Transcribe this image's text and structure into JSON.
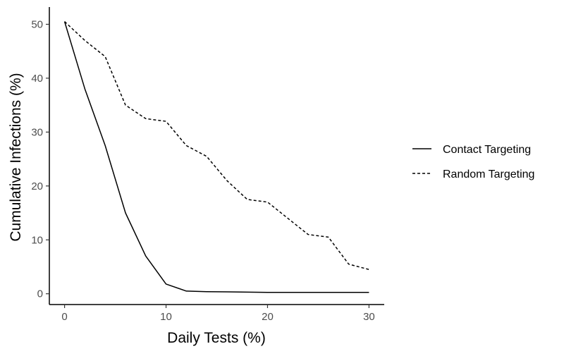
{
  "chart_data": {
    "type": "line",
    "title": "",
    "xlabel": "Daily Tests (%)",
    "ylabel": "Cumulative Infections (%)",
    "xlim": [
      -1.5,
      31.5
    ],
    "ylim": [
      -2.0,
      53.2
    ],
    "xticks": [
      0,
      10,
      20,
      30
    ],
    "yticks": [
      0,
      10,
      20,
      30,
      40,
      50
    ],
    "grid": false,
    "legend_position": "right",
    "series": [
      {
        "name": "Contact Targeting",
        "line_style": "solid",
        "color": "#000000",
        "x": [
          0,
          2,
          4,
          6,
          8,
          10,
          12,
          14,
          16,
          18,
          20,
          22,
          24,
          26,
          28,
          30
        ],
        "y": [
          50.5,
          38,
          27.5,
          15,
          7,
          1.8,
          0.5,
          0.4,
          0.35,
          0.3,
          0.25,
          0.25,
          0.25,
          0.25,
          0.25,
          0.25
        ]
      },
      {
        "name": "Random Targeting",
        "line_style": "dashed",
        "color": "#000000",
        "x": [
          0,
          2,
          4,
          6,
          8,
          10,
          12,
          14,
          16,
          18,
          20,
          22,
          24,
          26,
          28,
          30
        ],
        "y": [
          50.5,
          47,
          44,
          35,
          32.5,
          32,
          27.5,
          25.5,
          21,
          17.5,
          17,
          14,
          11,
          10.5,
          5.5,
          4.5
        ]
      }
    ]
  }
}
